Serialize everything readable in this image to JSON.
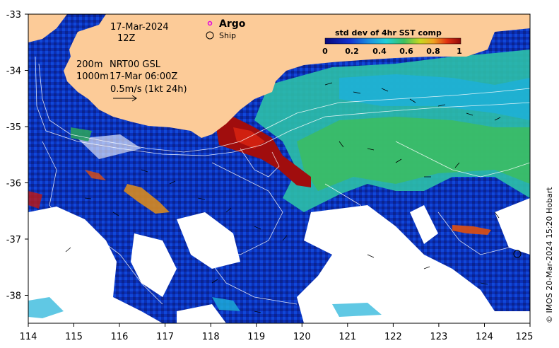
{
  "map": {
    "date": "17-Mar-2024",
    "hour": "12Z",
    "argo_label": "Argo",
    "ship_label": "Ship",
    "depth_line1": "200m",
    "depth_line2": "1000m",
    "model_line1": "NRT00 GSL",
    "model_line2": "17-Mar 06:00Z",
    "vector_scale_label": "0.5m/s (1kt 24h)",
    "credit": "© IMOS 20-Mar-2024 15:20 Hobart",
    "colors": {
      "land": "#fccb98",
      "nodata": "#ffffff",
      "low": "#0b2aa8",
      "mid": "#1fb6d6",
      "green": "#39b54a",
      "high": "#a00d0d",
      "argo_marker": "#e000e0"
    }
  },
  "axes": {
    "x_ticks": [
      "114",
      "115",
      "116",
      "117",
      "118",
      "119",
      "120",
      "121",
      "122",
      "123",
      "124",
      "125"
    ],
    "y_ticks": [
      "-33",
      "-34",
      "-35",
      "-36",
      "-37",
      "-38"
    ],
    "xlim": [
      114,
      125
    ],
    "ylim": [
      -38.5,
      -33
    ]
  },
  "colorbar": {
    "title": "std dev of 4hr SST comp",
    "ticks": [
      "0",
      "0.2",
      "0.4",
      "0.6",
      "0.8",
      "1"
    ],
    "range": [
      0,
      1
    ]
  }
}
